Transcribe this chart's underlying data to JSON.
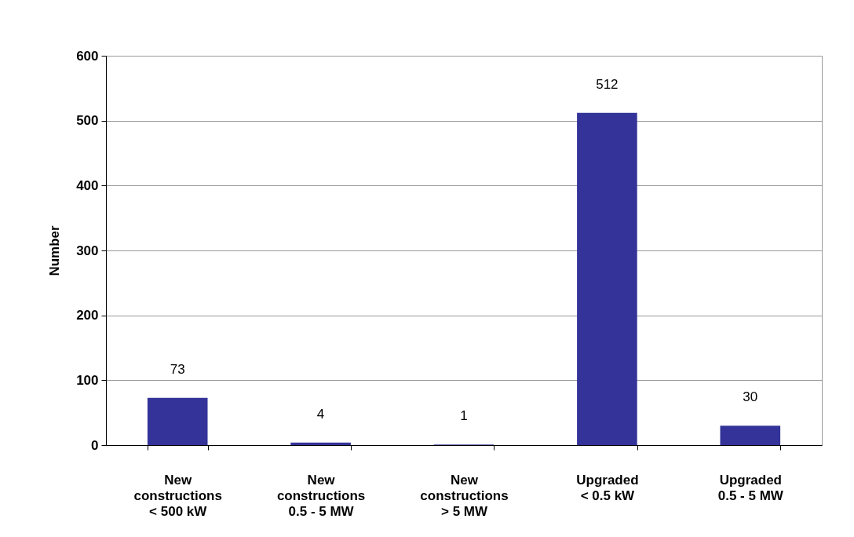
{
  "chart_data": {
    "type": "bar",
    "ylabel": "Number",
    "categories": [
      "New\nconstructions\n< 500 kW",
      "New\nconstructions\n0.5 - 5 MW",
      "New\nconstructions\n> 5 MW",
      "Upgraded\n< 0.5 kW",
      "Upgraded\n0.5 - 5 MW"
    ],
    "values": [
      73,
      4,
      1,
      512,
      30
    ],
    "color": "#333399",
    "ylim": [
      0,
      600
    ],
    "yticks": [
      0,
      100,
      200,
      300,
      400,
      500,
      600
    ],
    "grid": "y",
    "data_labels": true
  }
}
